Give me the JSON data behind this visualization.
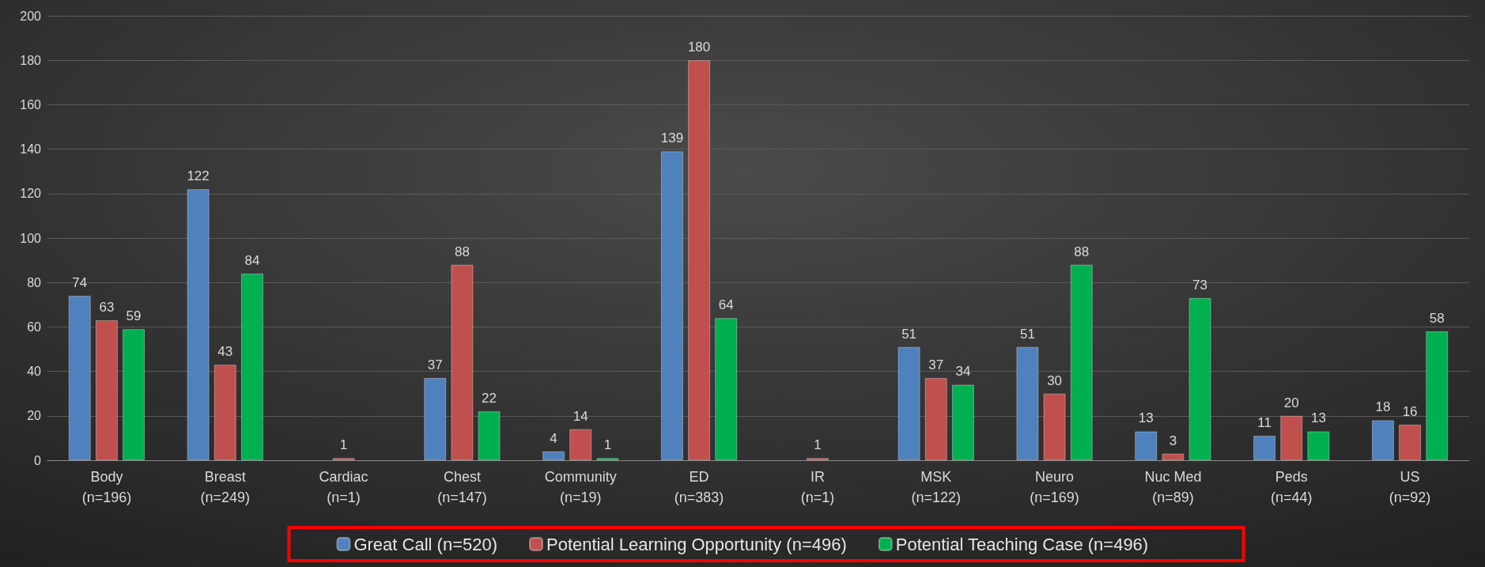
{
  "chart_data": {
    "type": "bar",
    "categories": [
      "Body\n(n=196)",
      "Breast\n(n=249)",
      "Cardiac\n(n=1)",
      "Chest\n(n=147)",
      "Community\n(n=19)",
      "ED\n(n=383)",
      "IR\n(n=1)",
      "MSK\n(n=122)",
      "Neuro\n(n=169)",
      "Nuc Med\n(n=89)",
      "Peds\n(n=44)",
      "US\n(n=92)"
    ],
    "series": [
      {
        "name": "Great Call (n=520)",
        "color": "#4f81bd",
        "values": [
          74,
          122,
          null,
          37,
          4,
          139,
          null,
          51,
          51,
          13,
          11,
          18
        ]
      },
      {
        "name": "Potential Learning Opportunity (n=496)",
        "color": "#c0504d",
        "values": [
          63,
          43,
          1,
          88,
          14,
          180,
          1,
          37,
          30,
          3,
          20,
          16
        ]
      },
      {
        "name": "Potential Teaching Case (n=496)",
        "color": "#00b050",
        "values": [
          59,
          84,
          null,
          22,
          1,
          64,
          null,
          34,
          88,
          73,
          13,
          58
        ]
      }
    ],
    "ylim": [
      0,
      200
    ],
    "yticks": [
      0,
      20,
      40,
      60,
      80,
      100,
      120,
      140,
      160,
      180,
      200
    ],
    "grid": "y",
    "legend": "bottom",
    "data_labels": true
  }
}
